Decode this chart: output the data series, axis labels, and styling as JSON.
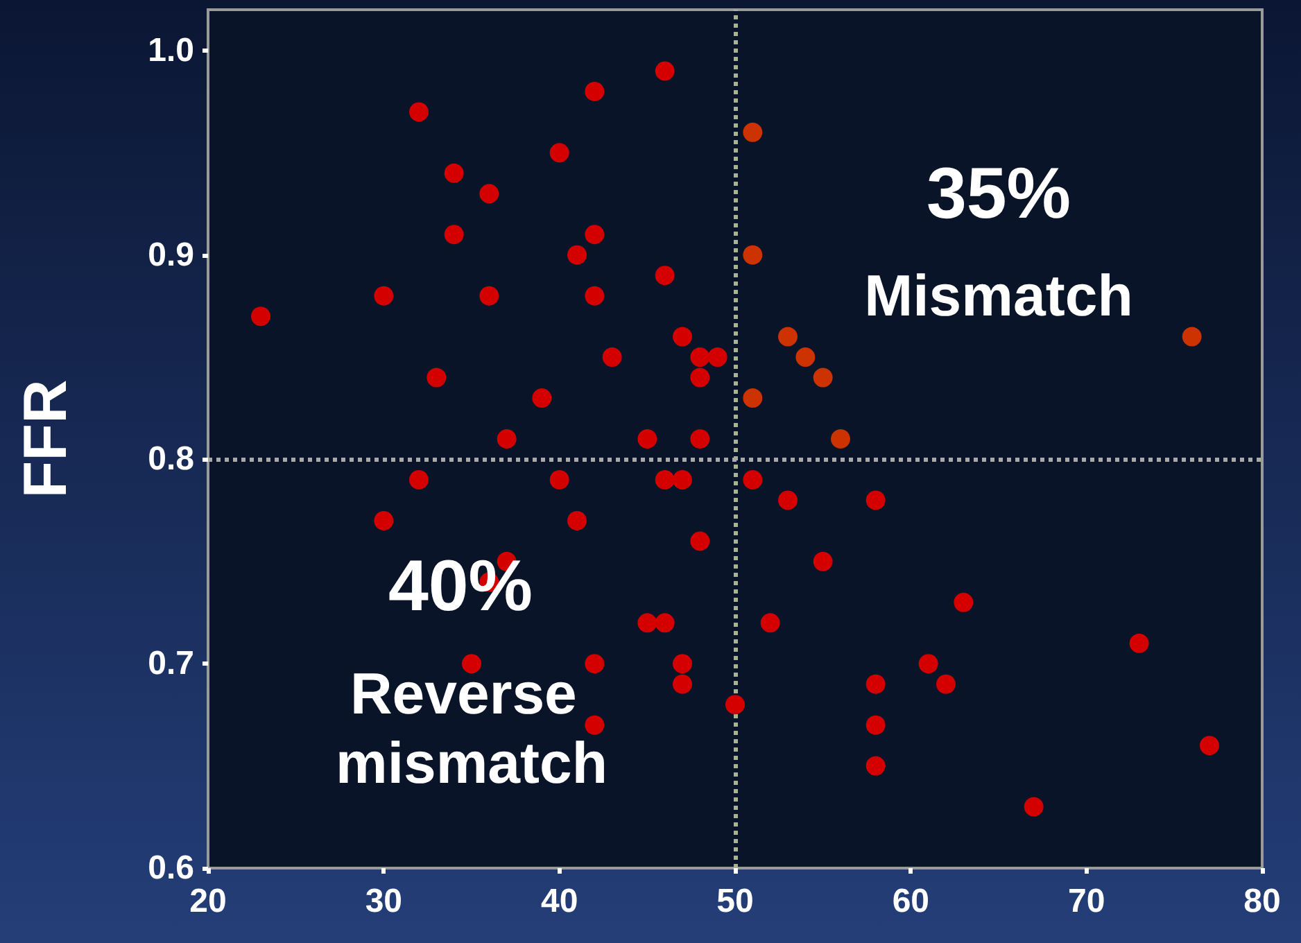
{
  "chart_data": {
    "type": "scatter",
    "ylabel": "FFR",
    "xlim": [
      20,
      80
    ],
    "xticks": [
      20,
      30,
      40,
      50,
      60,
      70,
      80
    ],
    "ylim": [
      0.6,
      1.02
    ],
    "yticks": [
      {
        "value": 0.6,
        "label": "0.6"
      },
      {
        "value": 0.7,
        "label": "0.7"
      },
      {
        "value": 0.8,
        "label": "0.8"
      },
      {
        "value": 0.9,
        "label": "0.9"
      },
      {
        "value": 1.0,
        "label": "1.0"
      }
    ],
    "grid": false,
    "marker": "circle",
    "series": [
      {
        "color": "#d40000",
        "x": [
          23,
          30,
          32,
          33,
          34,
          34,
          36,
          36,
          37,
          39,
          40,
          41,
          42,
          42,
          42,
          43,
          45,
          46,
          46,
          47,
          48,
          48,
          49,
          48,
          32,
          30,
          40,
          41,
          36,
          37,
          35,
          42,
          42,
          45,
          46,
          46,
          47,
          48,
          47,
          47,
          50,
          51,
          53,
          58,
          55,
          52,
          63,
          73,
          61,
          58,
          62,
          58,
          58,
          77,
          67
        ],
        "values": [
          0.87,
          0.88,
          0.97,
          0.84,
          0.94,
          0.91,
          0.93,
          0.88,
          0.81,
          0.83,
          0.95,
          0.9,
          0.98,
          0.91,
          0.88,
          0.85,
          0.81,
          0.99,
          0.89,
          0.86,
          0.85,
          0.84,
          0.85,
          0.81,
          0.79,
          0.77,
          0.79,
          0.77,
          0.74,
          0.75,
          0.7,
          0.7,
          0.67,
          0.72,
          0.72,
          0.79,
          0.79,
          0.76,
          0.7,
          0.69,
          0.68,
          0.79,
          0.78,
          0.78,
          0.75,
          0.72,
          0.73,
          0.71,
          0.7,
          0.69,
          0.69,
          0.67,
          0.65,
          0.66,
          0.63
        ]
      },
      {
        "color": "#cc3300",
        "x": [
          51,
          51,
          51,
          53,
          54,
          55,
          56,
          76
        ],
        "values": [
          0.96,
          0.9,
          0.83,
          0.86,
          0.85,
          0.84,
          0.81,
          0.86
        ]
      }
    ],
    "ref_lines": [
      {
        "axis": "x",
        "value": 50,
        "color": "#a9b48f",
        "line_style": "dotted"
      },
      {
        "axis": "y",
        "value": 0.8,
        "color": "#a9a9a9",
        "line_style": "dotted"
      }
    ],
    "annotations": [
      "35%",
      "Mismatch",
      "40%",
      "Reverse mismatch"
    ]
  }
}
